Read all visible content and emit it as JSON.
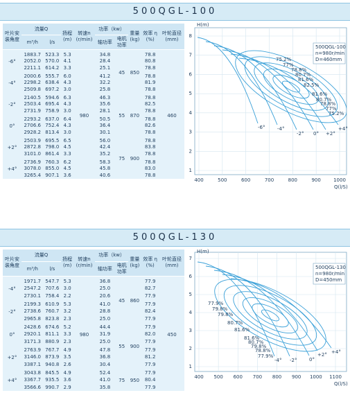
{
  "sections": [
    {
      "title": "500QGL-100",
      "headers": {
        "angle": "叶片安\n装角度",
        "flow": "流量Q",
        "flow_m3h": "m³/h",
        "flow_ls": "l/s",
        "head": "扬程\n(m)",
        "speed": "转速n\n(r/min)",
        "power": "功率（kw）",
        "shaft_power": "轴功率",
        "motor_power": "电机\n功率",
        "weight": "重量\n(kg)",
        "efficiency": "效率 η\n(%)",
        "diameter": "叶轮直径\n(mm)"
      },
      "speed": "980",
      "diameter": "460",
      "blocks": [
        {
          "motor_power": "45",
          "weight": "850",
          "groups": [
            {
              "angle": "-6°",
              "rows": [
                [
                  "1883.7",
                  "523.3",
                  "5.3",
                  "34.8",
                  "78.8"
                ],
                [
                  "2052.0",
                  "570.0",
                  "4.1",
                  "28.4",
                  "80.8"
                ],
                [
                  "2211.1",
                  "614.2",
                  "3.3",
                  "25.1",
                  "78.8"
                ]
              ]
            },
            {
              "angle": "-4°",
              "rows": [
                [
                  "2000.6",
                  "555.7",
                  "6.0",
                  "41.2",
                  "78.8"
                ],
                [
                  "2298.2",
                  "638.4",
                  "4.3",
                  "32.2",
                  "81.9"
                ],
                [
                  "2509.8",
                  "697.2",
                  "3.0",
                  "25.8",
                  "78.8"
                ]
              ]
            }
          ]
        },
        {
          "motor_power": "55",
          "weight": "870",
          "groups": [
            {
              "angle": "-2°",
              "rows": [
                [
                  "2140.5",
                  "594.6",
                  "6.3",
                  "46.3",
                  "78.8"
                ],
                [
                  "2503.4",
                  "695.4",
                  "4.3",
                  "35.6",
                  "82.5"
                ],
                [
                  "2731.9",
                  "758.9",
                  "3.0",
                  "28.1",
                  "78.8"
                ]
              ]
            },
            {
              "angle": "0°",
              "rows": [
                [
                  "2293.2",
                  "637.0",
                  "6.4",
                  "50.5",
                  "78.8"
                ],
                [
                  "2706.6",
                  "752.4",
                  "4.3",
                  "36.4",
                  "82.6"
                ],
                [
                  "2928.2",
                  "813.4",
                  "3.0",
                  "30.1",
                  "78.8"
                ]
              ]
            }
          ]
        },
        {
          "motor_power": "75",
          "weight": "900",
          "groups": [
            {
              "angle": "+2°",
              "rows": [
                [
                  "2503.9",
                  "695.5",
                  "6.5",
                  "56.0",
                  "78.8"
                ],
                [
                  "2872.8",
                  "798.0",
                  "4.5",
                  "42.4",
                  "83.8"
                ],
                [
                  "3101.0",
                  "861.4",
                  "3.3",
                  "35.2",
                  "78.8"
                ]
              ]
            },
            {
              "angle": "+4°",
              "rows": [
                [
                  "2736.9",
                  "760.3",
                  "6.2",
                  "58.3",
                  "78.8"
                ],
                [
                  "3078.0",
                  "855.0",
                  "4.5",
                  "45.8",
                  "83.0"
                ],
                [
                  "3265.4",
                  "907.1",
                  "3.6",
                  "40.6",
                  "78.8"
                ]
              ]
            }
          ]
        }
      ],
      "chart": {
        "y_label": "H(m)",
        "x_label": "Q(l/S)",
        "xticks": [
          400,
          500,
          600,
          700,
          800,
          900,
          1000
        ],
        "yticks": [
          1,
          2,
          3,
          4,
          5,
          6,
          7,
          8
        ],
        "legend": [
          "500QGL-100",
          "n=980r/min",
          "D=460mm"
        ],
        "efficiency_labels": [
          "75.2%",
          "77%",
          "78.8%",
          "80.7%",
          "81.6%",
          "82.5%",
          "81.6%",
          "80.7%",
          "78.8%",
          "77%",
          "75.2%"
        ],
        "angle_labels": [
          "-6°",
          "-4°",
          "-2°",
          "0°",
          "+2°",
          "+4°"
        ]
      }
    },
    {
      "title": "500QGL-130",
      "headers": {
        "angle": "叶片安\n装角度",
        "flow": "流量Q",
        "flow_m3h": "m³/h",
        "flow_ls": "l/s",
        "head": "扬程\n(m)",
        "speed": "转速n\n(r/min)",
        "power": "功率（kw）",
        "shaft_power": "轴功率",
        "motor_power": "电机\n功率",
        "weight": "重量\n(kg)",
        "efficiency": "效率 η\n(%)",
        "diameter": "叶轮直径\n(mm)"
      },
      "speed": "980",
      "diameter": "450",
      "blocks": [
        {
          "motor_power": "45",
          "weight": "860",
          "groups": [
            {
              "angle": "-4°",
              "rows": [
                [
                  "1971.7",
                  "547.7",
                  "5.3",
                  "36.8",
                  "77.9"
                ],
                [
                  "2547.2",
                  "707.6",
                  "3.0",
                  "25.0",
                  "82.7"
                ],
                [
                  "2730.1",
                  "758.4",
                  "2.2",
                  "20.6",
                  "77.9"
                ]
              ]
            },
            {
              "angle": "-2°",
              "rows": [
                [
                  "2199.3",
                  "610.9",
                  "5.3",
                  "41.0",
                  "77.9"
                ],
                [
                  "2738.6",
                  "760.7",
                  "3.2",
                  "28.8",
                  "82.4"
                ],
                [
                  "2965.8",
                  "823.8",
                  "2.3",
                  "25.0",
                  "77.9"
                ]
              ]
            }
          ]
        },
        {
          "motor_power": "55",
          "weight": "900",
          "groups": [
            {
              "angle": "0°",
              "rows": [
                [
                  "2428.6",
                  "674.6",
                  "5.2",
                  "44.4",
                  "77.9"
                ],
                [
                  "2920.1",
                  "811.1",
                  "3.3",
                  "31.9",
                  "82.0"
                ],
                [
                  "3171.3",
                  "880.9",
                  "2.3",
                  "25.0",
                  "77.9"
                ]
              ]
            },
            {
              "angle": "+2°",
              "rows": [
                [
                  "2763.9",
                  "767.7",
                  "4.9",
                  "47.8",
                  "77.9"
                ],
                [
                  "3146.0",
                  "873.9",
                  "3.5",
                  "36.8",
                  "81.2"
                ],
                [
                  "3387.1",
                  "940.8",
                  "2.6",
                  "30.4",
                  "77.9"
                ]
              ]
            }
          ]
        },
        {
          "motor_power": "75",
          "weight": "950",
          "groups": [
            {
              "angle": "+4°",
              "rows": [
                [
                  "3043.8",
                  "845.5",
                  "4.9",
                  "52.4",
                  "77.9"
                ],
                [
                  "3367.7",
                  "935.5",
                  "3.6",
                  "41.0",
                  "80.4"
                ],
                [
                  "3566.6",
                  "990.7",
                  "2.9",
                  "35.8",
                  "77.9"
                ]
              ]
            }
          ]
        }
      ],
      "chart": {
        "y_label": "H(m)",
        "x_label": "Q(l/S)",
        "xticks": [
          400,
          500,
          600,
          700,
          800,
          900,
          1000,
          1100
        ],
        "yticks": [
          1,
          2,
          3,
          4,
          5,
          6,
          7
        ],
        "legend": [
          "500QGL-130",
          "n=980r/min",
          "D=450mm"
        ],
        "efficiency_labels": [
          "77.9%",
          "79.8%",
          "79.8%",
          "80.7%",
          "81.6%",
          "81.6%",
          "80.7%",
          "79.8%",
          "78.8%",
          "77.9%"
        ],
        "angle_labels": [
          "-4°",
          "-2°",
          "0°",
          "+2°",
          "+4°"
        ]
      }
    }
  ]
}
